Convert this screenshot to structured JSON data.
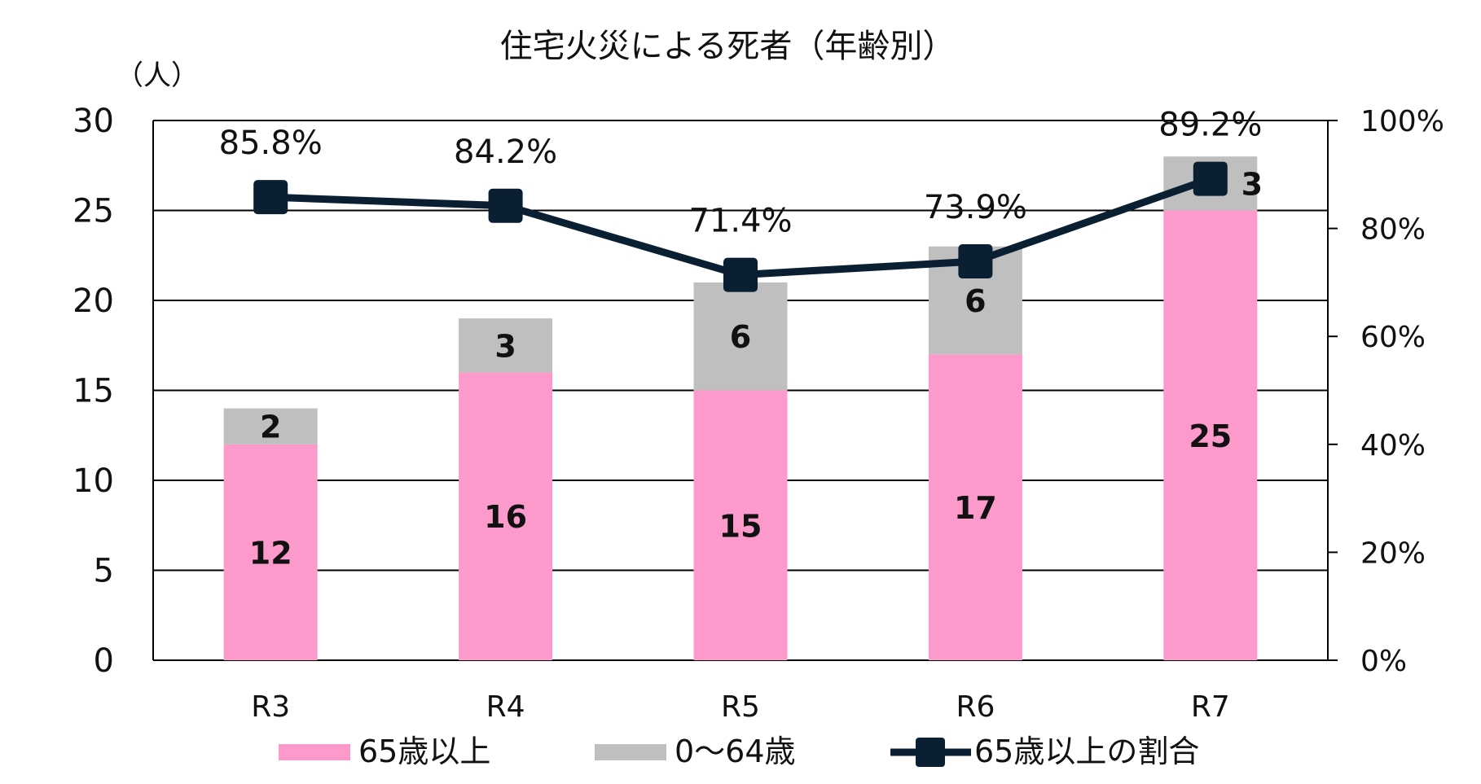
{
  "chart_data": {
    "type": "bar",
    "stacked": true,
    "title": "住宅火災による死者（年齢別）",
    "y_unit_label": "（人）",
    "categories": [
      "R3",
      "R4",
      "R5",
      "R6",
      "R7"
    ],
    "ylim": [
      0,
      30
    ],
    "yticks": [
      "0",
      "5",
      "10",
      "15",
      "20",
      "25",
      "30"
    ],
    "y2lim": [
      0,
      100
    ],
    "y2ticks": [
      "0%",
      "20%",
      "40%",
      "60%",
      "80%",
      "100%"
    ],
    "grid": true,
    "legend_position": "bottom",
    "series": [
      {
        "name": "65歳以上",
        "type": "bar",
        "color": "#fb9acb",
        "values": [
          12,
          16,
          15,
          17,
          25
        ],
        "labels": [
          "12",
          "16",
          "15",
          "17",
          "25"
        ]
      },
      {
        "name": "0～64歳",
        "type": "bar",
        "color": "#bfbfbf",
        "values": [
          2,
          3,
          6,
          6,
          3
        ],
        "labels": [
          "2",
          "3",
          "6",
          "6",
          "3"
        ]
      },
      {
        "name": "65歳以上の割合",
        "type": "line",
        "axis": "right",
        "color": "#0b1f33",
        "values": [
          85.8,
          84.2,
          71.4,
          73.9,
          89.2
        ],
        "labels": [
          "85.8%",
          "84.2%",
          "71.4%",
          "73.9%",
          "89.2%"
        ]
      }
    ]
  }
}
